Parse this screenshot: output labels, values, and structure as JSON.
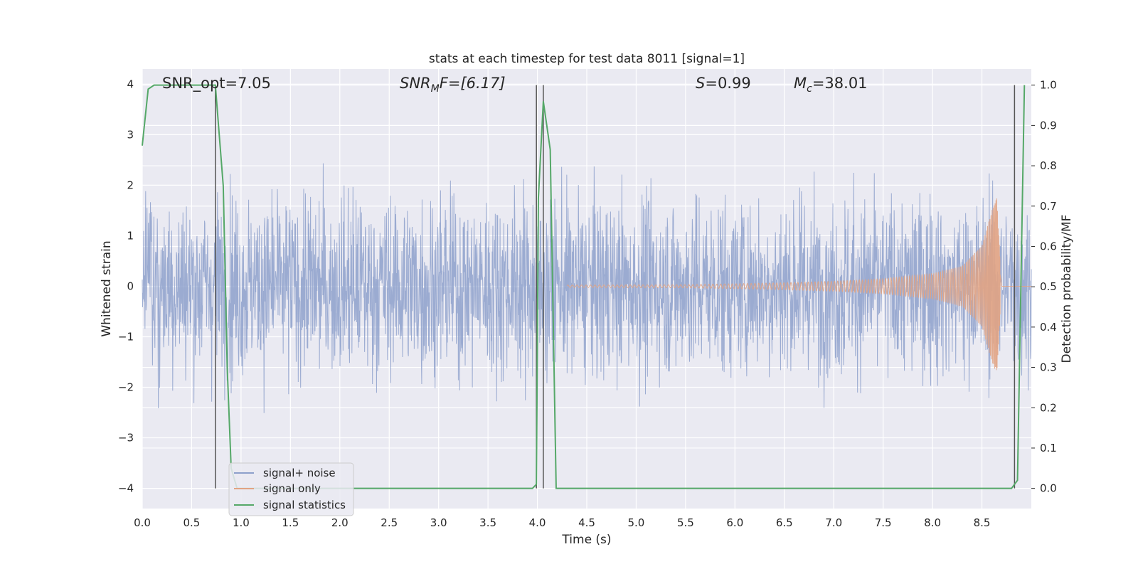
{
  "chart_data": {
    "type": "line",
    "title": "stats at each timestep for test data 8011 [signal=1]",
    "xlabel": "Time (s)",
    "ylabel": "Whitened strain",
    "ylabel_right": "Detection probability/MF",
    "xlim": [
      0,
      9.0
    ],
    "ylim": [
      -4.4,
      4.3
    ],
    "ylim_right": [
      -0.05,
      1.04
    ],
    "x_ticks": [
      "0.0",
      "0.5",
      "1.0",
      "1.5",
      "2.0",
      "2.5",
      "3.0",
      "3.5",
      "4.0",
      "4.5",
      "5.0",
      "5.5",
      "6.0",
      "6.5",
      "7.0",
      "7.5",
      "8.0",
      "8.5"
    ],
    "y_ticks": [
      "−4",
      "−3",
      "−2",
      "−1",
      "0",
      "1",
      "2",
      "3",
      "4"
    ],
    "y_ticks_right": [
      "0.0",
      "0.1",
      "0.2",
      "0.3",
      "0.4",
      "0.5",
      "0.6",
      "0.7",
      "0.8",
      "0.9",
      "1.0"
    ],
    "grid": true,
    "legend_position": "lower-left",
    "annotations": {
      "snr_opt": "SNR_opt=7.05",
      "snr_mf_main": "SNR",
      "snr_mf_sub": "M",
      "snr_mf_rest": "F=[6.17]",
      "s_main": "S",
      "s_rest": "=0.99",
      "mc_main": "M",
      "mc_sub": "c",
      "mc_rest": "=38.01"
    },
    "vertical_lines_x": [
      0.74,
      3.99,
      4.06,
      8.83
    ],
    "series": [
      {
        "name": "signal+ noise",
        "color": "#8da0cb",
        "description_values": "whitened strain noise, roughly within [-3.9, 3.9] over 0–9 s"
      },
      {
        "name": "signal only",
        "color": "#e1a383",
        "x": [
          5.5,
          6.0,
          6.5,
          7.0,
          7.5,
          8.0,
          8.3,
          8.5,
          8.6,
          8.65,
          8.7
        ],
        "envelope": [
          0.03,
          0.05,
          0.07,
          0.1,
          0.15,
          0.25,
          0.4,
          0.8,
          1.5,
          1.75,
          0.1
        ]
      },
      {
        "name": "signal statistics",
        "color": "#55a868",
        "axis": "right",
        "x": [
          0.0,
          0.06,
          0.12,
          0.5,
          0.74,
          0.82,
          0.86,
          0.9,
          0.96,
          1.0,
          3.5,
          3.95,
          3.99,
          4.01,
          4.06,
          4.13,
          4.19,
          4.25,
          5.0,
          6.0,
          7.0,
          8.0,
          8.8,
          8.86,
          8.93
        ],
        "y": [
          0.85,
          0.99,
          1.0,
          1.0,
          1.0,
          0.75,
          0.3,
          0.05,
          0.0,
          0.0,
          0.0,
          0.0,
          0.01,
          0.72,
          0.96,
          0.84,
          0.0,
          0.0,
          0.0,
          0.0,
          0.0,
          0.0,
          0.0,
          0.02,
          1.0
        ]
      }
    ]
  }
}
